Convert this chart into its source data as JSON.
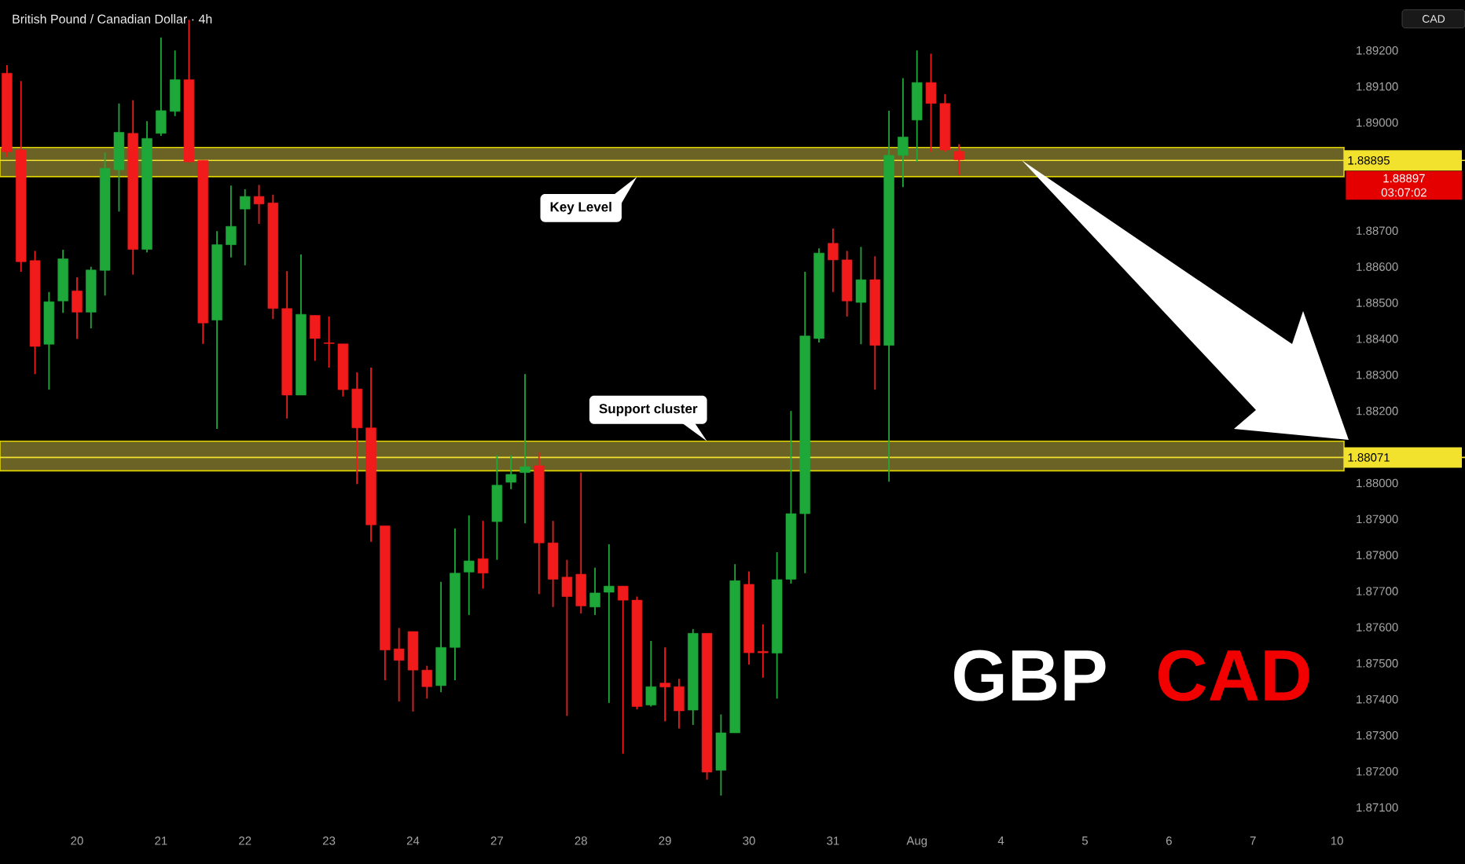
{
  "chart_data": {
    "type": "candlestick",
    "title": "British Pound / Canadian Dollar · 4h",
    "ylabel": "CAD",
    "categories": [
      null,
      null,
      null,
      null,
      null,
      "20",
      null,
      null,
      null,
      null,
      null,
      "21",
      null,
      null,
      null,
      null,
      null,
      "22",
      null,
      null,
      null,
      null,
      null,
      "23",
      null,
      null,
      null,
      null,
      null,
      "24",
      null,
      null,
      null,
      null,
      null,
      "27",
      null,
      null,
      null,
      null,
      null,
      "28",
      null,
      null,
      null,
      null,
      null,
      "29",
      null,
      null,
      null,
      null,
      null,
      "30",
      null,
      null,
      null,
      null,
      null,
      "31",
      null,
      null,
      null,
      null,
      null,
      "Aug",
      null,
      null,
      null,
      null,
      null,
      "4",
      null,
      null,
      null,
      null,
      null,
      "5",
      null,
      null,
      null,
      null,
      null,
      "6",
      null,
      null,
      null,
      null,
      null,
      "7",
      null,
      null,
      null,
      null,
      null,
      "10"
    ],
    "ohlc": [
      [
        1.89137,
        1.89159,
        1.88905,
        1.88919
      ],
      [
        1.88924,
        1.89115,
        1.88586,
        1.88614
      ],
      [
        1.88617,
        1.88644,
        1.88302,
        1.88379
      ],
      [
        1.88385,
        1.8853,
        1.88259,
        1.88503
      ],
      [
        1.88505,
        1.88647,
        1.88472,
        1.88622
      ],
      [
        1.88533,
        1.88571,
        1.884,
        1.88474
      ],
      [
        1.88474,
        1.886,
        1.88429,
        1.88591
      ],
      [
        1.8859,
        1.88917,
        1.8852,
        1.88873
      ],
      [
        1.88869,
        1.89053,
        1.88753,
        1.88973
      ],
      [
        1.8897,
        1.89062,
        1.88578,
        1.88648
      ],
      [
        1.88648,
        1.89004,
        1.8864,
        1.88956
      ],
      [
        1.8897,
        1.89236,
        1.88963,
        1.89033
      ],
      [
        1.89031,
        1.892,
        1.89018,
        1.89119
      ],
      [
        1.89119,
        1.89285,
        1.8889,
        1.88891
      ],
      [
        1.88895,
        1.88895,
        1.88386,
        1.88444
      ],
      [
        1.88452,
        1.88699,
        1.8815,
        1.88661
      ],
      [
        1.88661,
        1.88825,
        1.88626,
        1.88712
      ],
      [
        1.8876,
        1.88815,
        1.88604,
        1.88795
      ],
      [
        1.88795,
        1.88827,
        1.88719,
        1.88774
      ],
      [
        1.88777,
        1.888,
        1.88455,
        1.88484
      ],
      [
        1.88484,
        1.88588,
        1.88179,
        1.88244
      ],
      [
        1.88244,
        1.88634,
        1.88244,
        1.88468
      ],
      [
        1.88465,
        1.88465,
        1.88339,
        1.88401
      ],
      [
        1.88389,
        1.88462,
        1.8832,
        1.88387
      ],
      [
        1.88386,
        1.88386,
        1.8824,
        1.88259
      ],
      [
        1.88261,
        1.88307,
        1.87997,
        1.88153
      ],
      [
        1.88153,
        1.8832,
        1.87837,
        1.87884
      ],
      [
        1.87881,
        1.87881,
        1.87453,
        1.87537
      ],
      [
        1.8754,
        1.87598,
        1.87394,
        1.87508
      ],
      [
        1.87588,
        1.87588,
        1.87366,
        1.87481
      ],
      [
        1.87481,
        1.87493,
        1.87402,
        1.87435
      ],
      [
        1.87438,
        1.87726,
        1.8742,
        1.87544
      ],
      [
        1.87544,
        1.87874,
        1.87453,
        1.8775
      ],
      [
        1.87753,
        1.8791,
        1.87634,
        1.87784
      ],
      [
        1.8779,
        1.87895,
        1.87707,
        1.8775
      ],
      [
        1.87893,
        1.88077,
        1.87787,
        1.87994
      ],
      [
        1.88002,
        1.88077,
        1.87983,
        1.88024
      ],
      [
        1.88029,
        1.88302,
        1.87888,
        1.88045
      ],
      [
        1.88048,
        1.88085,
        1.87692,
        1.87834
      ],
      [
        1.87834,
        1.87895,
        1.87656,
        1.87733
      ],
      [
        1.87739,
        1.87787,
        1.87354,
        1.87685
      ],
      [
        1.87747,
        1.88029,
        1.87638,
        1.87659
      ],
      [
        1.87656,
        1.87765,
        1.87634,
        1.87695
      ],
      [
        1.87697,
        1.8783,
        1.8739,
        1.87714
      ],
      [
        1.87714,
        1.87714,
        1.87249,
        1.87675
      ],
      [
        1.87675,
        1.87685,
        1.87372,
        1.8738
      ],
      [
        1.87384,
        1.87562,
        1.8738,
        1.87435
      ],
      [
        1.87445,
        1.87544,
        1.87339,
        1.87434
      ],
      [
        1.87435,
        1.87457,
        1.87319,
        1.87368
      ],
      [
        1.8737,
        1.87595,
        1.87329,
        1.87583
      ],
      [
        1.87583,
        1.87583,
        1.87177,
        1.87198
      ],
      [
        1.87203,
        1.87358,
        1.87133,
        1.87307
      ],
      [
        1.87307,
        1.87775,
        1.87307,
        1.87729
      ],
      [
        1.87719,
        1.87755,
        1.87496,
        1.87529
      ],
      [
        1.87533,
        1.87608,
        1.8746,
        1.87529
      ],
      [
        1.87528,
        1.87808,
        1.87402,
        1.87732
      ],
      [
        1.87733,
        1.882,
        1.87721,
        1.87915
      ],
      [
        1.87915,
        1.88586,
        1.8775,
        1.88408
      ],
      [
        1.88401,
        1.88651,
        1.8839,
        1.88638
      ],
      [
        1.88665,
        1.88706,
        1.8853,
        1.88619
      ],
      [
        1.88619,
        1.88644,
        1.88462,
        1.88505
      ],
      [
        1.88501,
        1.88655,
        1.88385,
        1.88564
      ],
      [
        1.88564,
        1.88629,
        1.88259,
        1.88382
      ],
      [
        1.88382,
        1.89033,
        1.88004,
        1.88909
      ],
      [
        1.88909,
        1.89123,
        1.88821,
        1.8896
      ],
      [
        1.89007,
        1.892,
        1.88891,
        1.89111
      ],
      [
        1.89111,
        1.89191,
        1.88919,
        1.89053
      ],
      [
        1.89053,
        1.89079,
        1.88919,
        1.88924
      ],
      [
        1.8892,
        1.8894,
        1.88855,
        1.88897
      ],
      null,
      null,
      null,
      null,
      null,
      null,
      null,
      null,
      null,
      null,
      null,
      null,
      null,
      null,
      null,
      null,
      null,
      null,
      null,
      null,
      null,
      null,
      null,
      null,
      null,
      null,
      null
    ],
    "colors": [
      "#f21b1b",
      "#f21b1b",
      "#f21b1b",
      "#1fa83a",
      "#1fa83a",
      "#f21b1b",
      "#1fa83a",
      "#1fa83a",
      "#1fa83a",
      "#f21b1b",
      "#1fa83a",
      "#1fa83a",
      "#1fa83a",
      "#f21b1b",
      "#f21b1b",
      "#1fa83a",
      "#1fa83a",
      "#1fa83a",
      "#f21b1b",
      "#f21b1b",
      "#f21b1b",
      "#1fa83a",
      "#f21b1b",
      "#f21b1b",
      "#f21b1b",
      "#f21b1b",
      "#f21b1b",
      "#f21b1b",
      "#f21b1b",
      "#f21b1b",
      "#f21b1b",
      "#1fa83a",
      "#1fa83a",
      "#1fa83a",
      "#f21b1b",
      "#1fa83a",
      "#1fa83a",
      "#1fa83a",
      "#f21b1b",
      "#f21b1b",
      "#f21b1b",
      "#f21b1b",
      "#1fa83a",
      "#1fa83a",
      "#f21b1b",
      "#f21b1b",
      "#1fa83a",
      "#f21b1b",
      "#f21b1b",
      "#1fa83a",
      "#f21b1b",
      "#1fa83a",
      "#1fa83a",
      "#f21b1b",
      "#f21b1b",
      "#1fa83a",
      "#1fa83a",
      "#1fa83a",
      "#1fa83a",
      "#f21b1b",
      "#f21b1b",
      "#1fa83a",
      "#f21b1b",
      "#1fa83a",
      "#1fa83a",
      "#1fa83a",
      "#f21b1b",
      "#f21b1b",
      "#f21b1b",
      null,
      null,
      null,
      null,
      null,
      null,
      null,
      null,
      null,
      null,
      null,
      null,
      null,
      null,
      null,
      null,
      null,
      null,
      null,
      null,
      null,
      null,
      null,
      null,
      null,
      null,
      null
    ],
    "ylim": [
      1.871,
      1.8934
    ],
    "yticks": [
      {
        "value": 1.871,
        "label": "1.87100"
      },
      {
        "value": 1.872,
        "label": "1.87200"
      },
      {
        "value": 1.873,
        "label": "1.87300"
      },
      {
        "value": 1.874,
        "label": "1.87400"
      },
      {
        "value": 1.875,
        "label": "1.87500"
      },
      {
        "value": 1.876,
        "label": "1.87600"
      },
      {
        "value": 1.877,
        "label": "1.87700"
      },
      {
        "value": 1.878,
        "label": "1.87800"
      },
      {
        "value": 1.879,
        "label": "1.87900"
      },
      {
        "value": 1.88,
        "label": "1.88000"
      },
      {
        "value": 1.882,
        "label": "1.88200"
      },
      {
        "value": 1.883,
        "label": "1.88300"
      },
      {
        "value": 1.884,
        "label": "1.88400"
      },
      {
        "value": 1.885,
        "label": "1.88500"
      },
      {
        "value": 1.886,
        "label": "1.88600"
      },
      {
        "value": 1.887,
        "label": "1.88700"
      },
      {
        "value": 1.89,
        "label": "1.89000"
      },
      {
        "value": 1.891,
        "label": "1.89100"
      },
      {
        "value": 1.892,
        "label": "1.89200"
      }
    ],
    "bands": [
      {
        "axis": "y",
        "from": 1.8885,
        "to": 1.88931,
        "label": "Key Level",
        "color": "#6b6326"
      },
      {
        "axis": "y",
        "from": 1.88034,
        "to": 1.88116,
        "label": "Support cluster",
        "color": "#6b6326"
      }
    ],
    "ref_lines": [
      {
        "axis": "y",
        "value": 1.88895,
        "label": "1.88895",
        "color": "#f2e22e"
      },
      {
        "axis": "y",
        "value": 1.88071,
        "label": "1.88071",
        "color": "#f2e22e"
      }
    ],
    "annotations": [
      "1.88897",
      "03:07:02",
      "GBP",
      "CAD"
    ]
  }
}
